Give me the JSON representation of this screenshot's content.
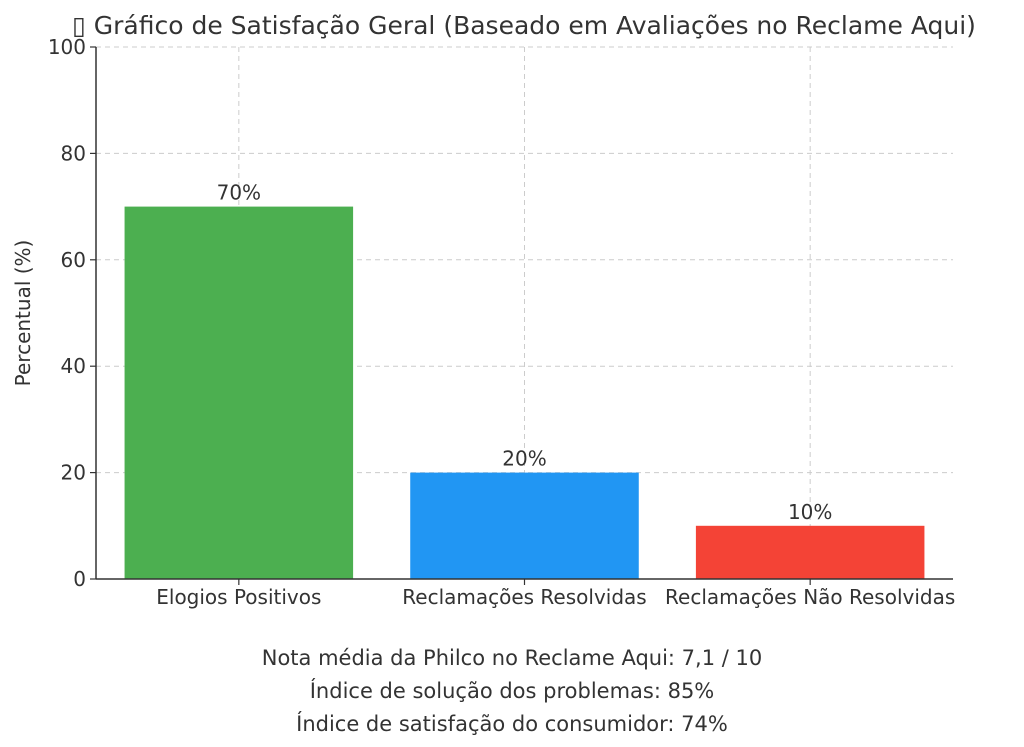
{
  "chart_data": {
    "type": "bar",
    "title": "▯ Gráfico de Satisfação Geral (Baseado em Avaliações no Reclame Aqui)",
    "xlabel": "",
    "ylabel": "Percentual (%)",
    "ylim": [
      0,
      100
    ],
    "yticks": [
      "0",
      "20",
      "40",
      "60",
      "80",
      "100"
    ],
    "categories": [
      "Elogios Positivos",
      "Reclamações Resolvidas",
      "Reclamações Não Resolvidas"
    ],
    "values": [
      70,
      20,
      10
    ],
    "data_labels": [
      "70%",
      "20%",
      "10%"
    ],
    "colors": [
      "#4caf50",
      "#2196f3",
      "#f44336"
    ],
    "grid": true,
    "legend": "none"
  },
  "footnotes": {
    "line1": "Nota média da Philco no Reclame Aqui: 7,1 / 10",
    "line2": "Índice de solução dos problemas: 85%",
    "line3": "Índice de satisfação do consumidor: 74%"
  }
}
